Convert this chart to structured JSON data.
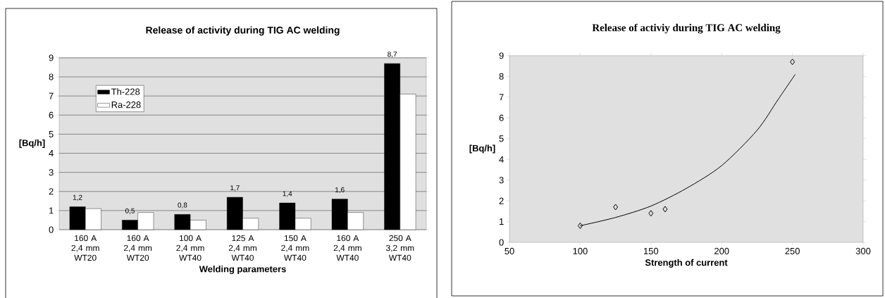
{
  "chart_data": [
    {
      "type": "bar",
      "title": "Release of activity during TIG AC welding",
      "xlabel": "Welding parameters",
      "ylabel": "[Bq/h]",
      "categories": [
        "160 A 2,4 mm WT20",
        "160 A 2,4 mm WT20",
        "100 A 2,4 mm WT40",
        "125 A 2,4 mm WT40",
        "150 A 2,4 mm WT40",
        "160 A 2,4 mm WT40",
        "250 A 3,2 mm WT40"
      ],
      "series": [
        {
          "name": "Th-228",
          "color": "#000000",
          "values": [
            1.2,
            0.5,
            0.8,
            1.7,
            1.4,
            1.6,
            8.7
          ],
          "value_labels": [
            "1,2",
            "0,5",
            "0,8",
            "1,7",
            "1,4",
            "1,6",
            "8,7"
          ]
        },
        {
          "name": "Ra-228",
          "color": "#ffffff",
          "values": [
            1.1,
            0.9,
            0.5,
            0.6,
            0.6,
            0.9,
            7.1
          ]
        }
      ],
      "ylim": [
        0,
        9
      ],
      "yticks": [
        0,
        1,
        2,
        3,
        4,
        5,
        6,
        7,
        8,
        9
      ],
      "grid": "y",
      "legend": "top left"
    },
    {
      "type": "scatter",
      "title": "Release of activiy during TIG AC welding",
      "xlabel": "Strength of current",
      "ylabel": "[Bq/h]",
      "series": [
        {
          "marker": "diamond",
          "color": "#000000",
          "x": [
            100,
            125,
            150,
            160,
            250
          ],
          "values": [
            0.8,
            1.7,
            1.4,
            1.6,
            8.7
          ]
        },
        {
          "type": "line",
          "marker": "none",
          "color": "#000000",
          "x": [
            100,
            125,
            150,
            175,
            200,
            225,
            240,
            252
          ],
          "values": [
            0.8,
            1.2,
            1.75,
            2.6,
            3.7,
            5.4,
            6.9,
            8.1
          ]
        }
      ],
      "xlim": [
        50,
        300
      ],
      "xticks": [
        50,
        100,
        150,
        200,
        250,
        300
      ],
      "ylim": [
        0,
        9
      ],
      "yticks": [
        0,
        1,
        2,
        3,
        4,
        5,
        6,
        7,
        8,
        9
      ]
    }
  ]
}
